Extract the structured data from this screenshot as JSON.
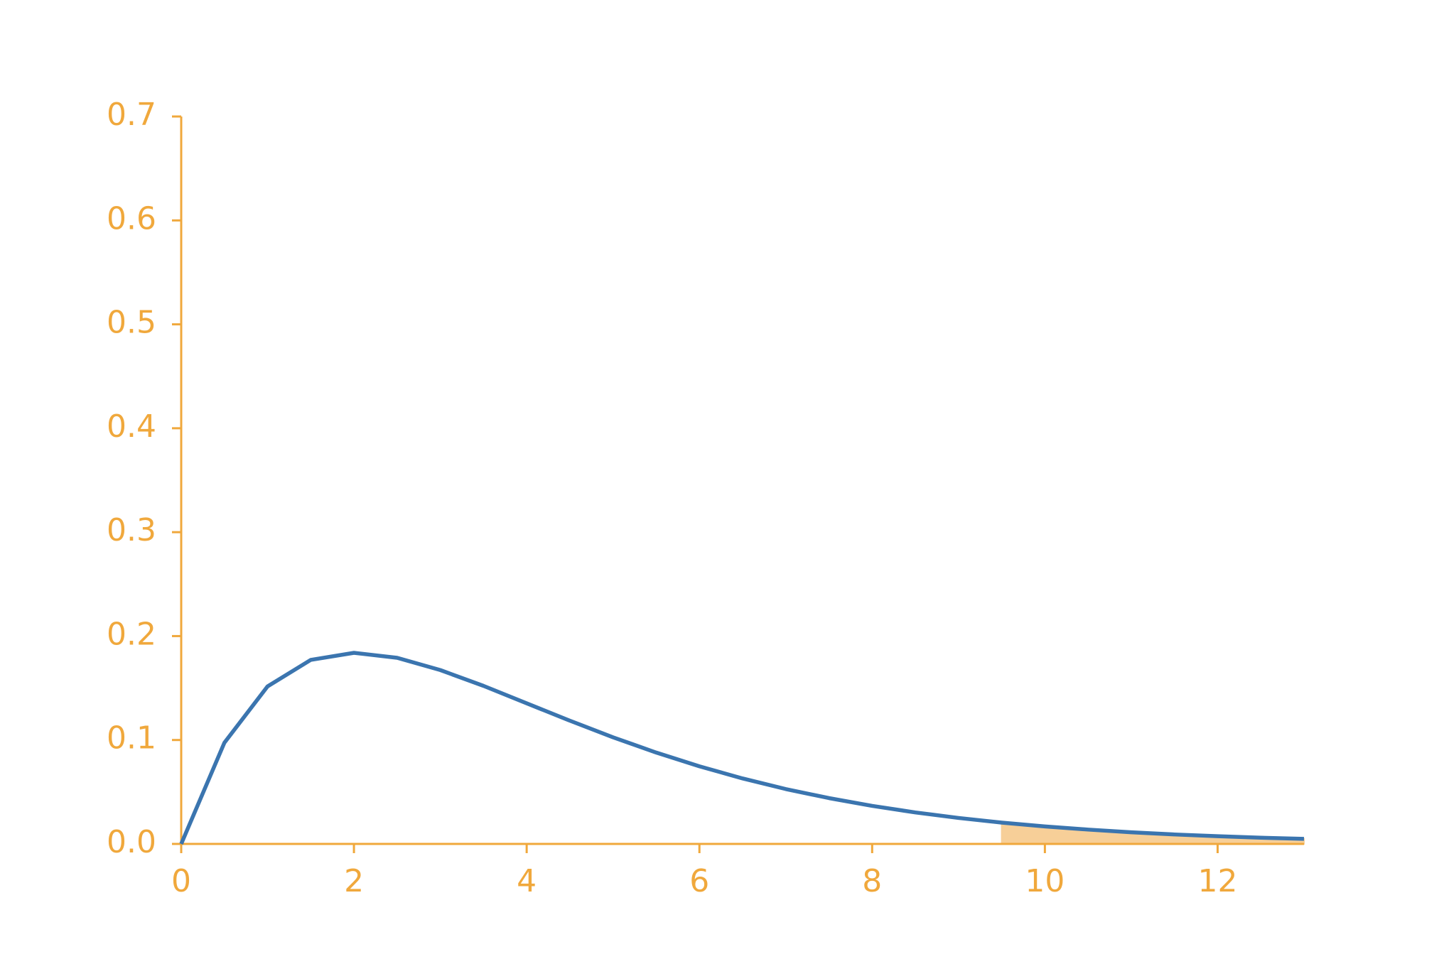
{
  "chart_data": {
    "type": "line",
    "x": [
      0,
      0.5,
      1,
      1.5,
      2,
      2.5,
      3,
      3.5,
      4,
      4.5,
      5,
      5.5,
      6,
      6.5,
      7,
      7.5,
      8,
      8.5,
      9,
      9.5,
      10,
      10.5,
      11,
      11.5,
      12,
      12.5,
      13
    ],
    "series": [
      {
        "color": "#3b75af",
        "values": [
          0,
          0.0974,
          0.1516,
          0.1771,
          0.1839,
          0.1791,
          0.1673,
          0.1521,
          0.1353,
          0.1186,
          0.1026,
          0.0879,
          0.0747,
          0.063,
          0.0528,
          0.0441,
          0.0366,
          0.0303,
          0.025,
          0.0205,
          0.0168,
          0.0138,
          0.0112,
          0.0091,
          0.0074,
          0.006,
          0.0049
        ]
      }
    ],
    "shaded": {
      "color": "#f7cf98",
      "x": [
        9.5,
        10,
        10.5,
        11,
        11.5,
        12,
        12.5,
        13
      ],
      "values": [
        0.0205,
        0.0168,
        0.0138,
        0.0112,
        0.0091,
        0.0074,
        0.006,
        0.0049
      ]
    },
    "axis_color": "#f0a83c",
    "xlim": [
      0,
      13
    ],
    "xticks": [
      0,
      2,
      4,
      6,
      8,
      10,
      12
    ],
    "ylim": [
      0,
      0.7
    ],
    "yticks": [
      {
        "value": 0,
        "label": "0.0"
      },
      0.1,
      0.2,
      0.3,
      0.4,
      0.5,
      0.6,
      0.7
    ]
  }
}
